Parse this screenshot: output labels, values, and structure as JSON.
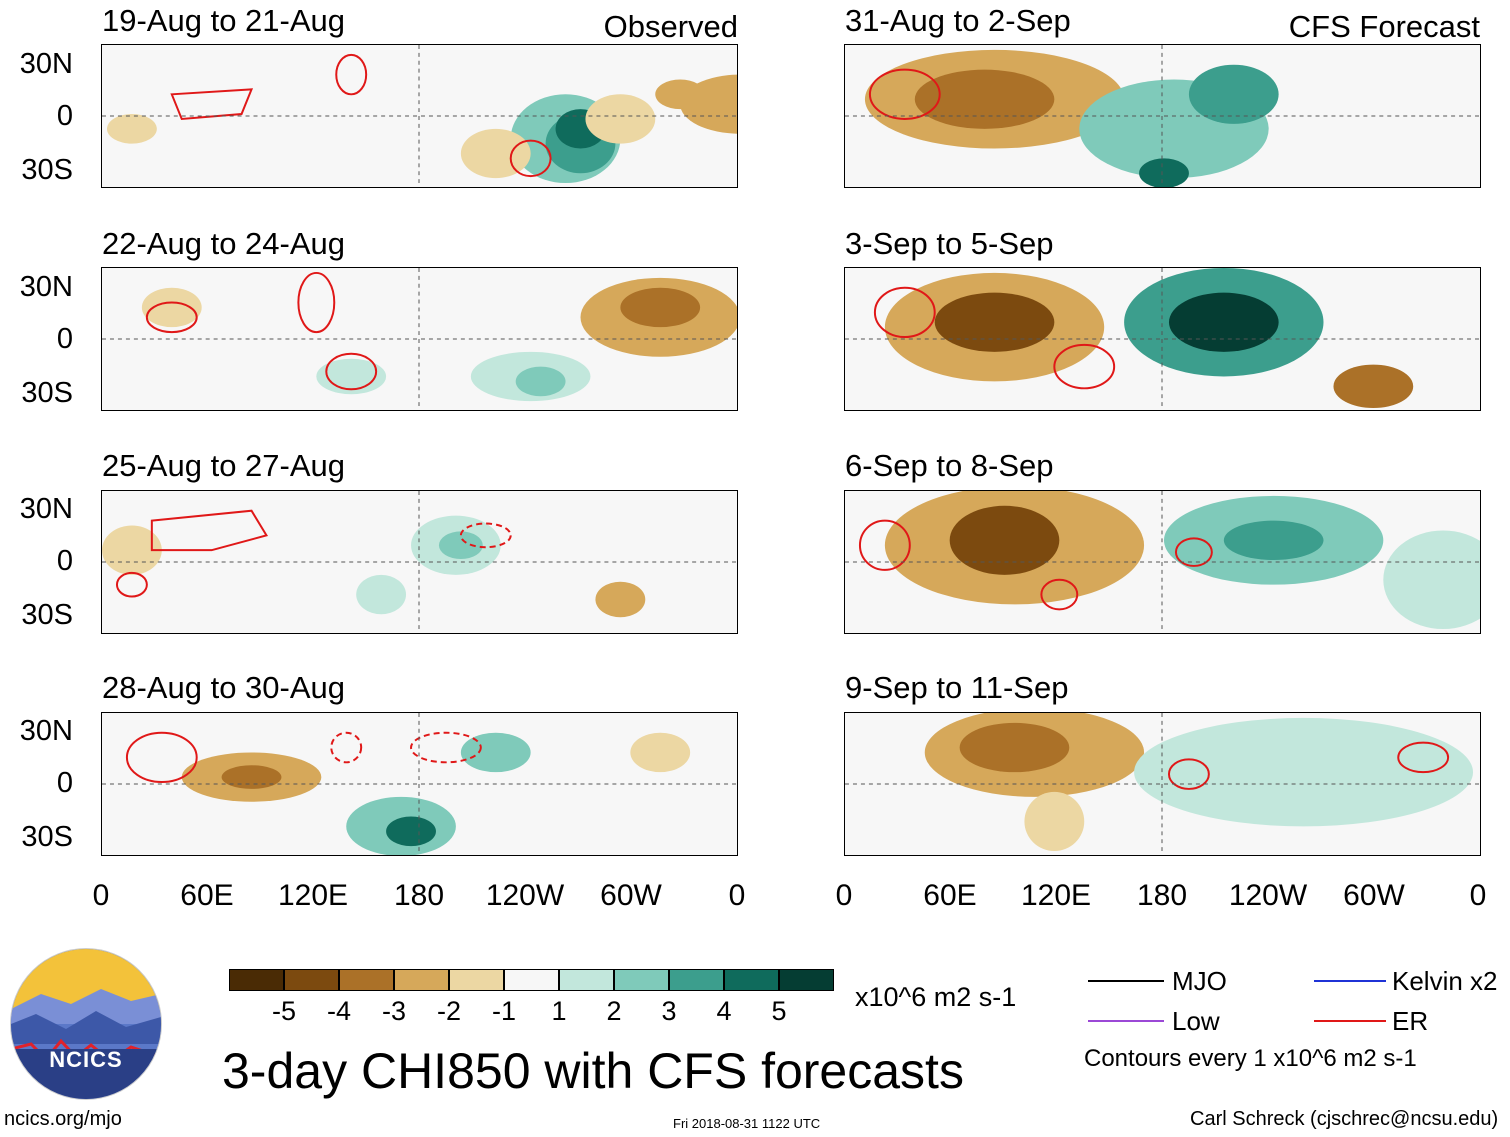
{
  "header": {
    "observed_label": "Observed",
    "forecast_label": "CFS Forecast"
  },
  "lat_labels": [
    "30N",
    "0",
    "30S"
  ],
  "lon_labels": [
    "0",
    "60E",
    "120E",
    "180",
    "120W",
    "60W",
    "0"
  ],
  "panels": [
    {
      "title": "19-Aug to 21-Aug"
    },
    {
      "title": "22-Aug to 24-Aug"
    },
    {
      "title": "25-Aug to 27-Aug"
    },
    {
      "title": "28-Aug to 30-Aug"
    },
    {
      "title": "31-Aug to 2-Sep"
    },
    {
      "title": "3-Sep to 5-Sep"
    },
    {
      "title": "6-Sep to 8-Sep"
    },
    {
      "title": "9-Sep to 11-Sep"
    }
  ],
  "colorbar": {
    "labels": [
      "-5",
      "-4",
      "-3",
      "-2",
      "-1",
      "1",
      "2",
      "3",
      "4",
      "5"
    ],
    "colors": [
      "#4a2b05",
      "#7c4a0f",
      "#ab7128",
      "#d6a85a",
      "#ecd7a3",
      "#f7f7f7",
      "#c2e7dc",
      "#7fcaba",
      "#3c9e8d",
      "#0f6b5c",
      "#053d33"
    ],
    "units": "x10^6 m2 s-1"
  },
  "legend": {
    "mjo": "MJO",
    "kelvin": "Kelvin x2",
    "low": "Low",
    "er": "ER",
    "contours_note": "Contours every 1 x10^6 m2 s-1",
    "colors": {
      "mjo": "#000000",
      "kelvin": "#1f33d6",
      "low": "#9b48d6",
      "er": "#e01818"
    }
  },
  "logo": {
    "text": "NCICS"
  },
  "main_title": "3-day CHI850 with CFS forecasts",
  "footer": {
    "url": "ncics.org/mjo",
    "timestamp": "Fri 2018-08-31 1122 UTC",
    "author": "Carl Schreck (cjschrec@ncsu.edu)"
  }
}
